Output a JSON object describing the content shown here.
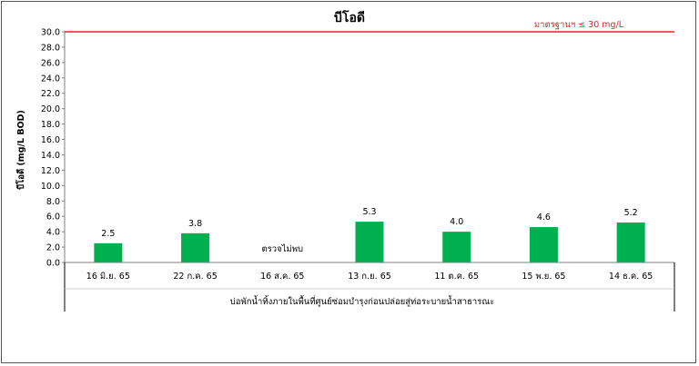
{
  "chart_data": {
    "type": "bar",
    "title": "บีโอดี",
    "ylabel": "บีโอดี (mg/L BOD)",
    "xlabel": "บ่อพักน้ำทิ้งภายในพื้นที่ศูนย์ซ่อมบำรุงก่อนปล่อยสู่ท่อระบายน้ำสาธารณะ",
    "categories": [
      "16 มิ.ย. 65",
      "22 ก.ค. 65",
      "16 ส.ค. 65",
      "13 ก.ย. 65",
      "11 ต.ค. 65",
      "15 พ.ย. 65",
      "14 ธ.ค. 65"
    ],
    "values": [
      2.5,
      3.8,
      null,
      5.3,
      4.0,
      4.6,
      5.2
    ],
    "value_labels": [
      "2.5",
      "3.8",
      "ตรวจไม่พบ",
      "5.3",
      "4.0",
      "4.6",
      "5.2"
    ],
    "ylim": [
      0,
      30
    ],
    "yticks": [
      "0.0",
      "2.0",
      "4.0",
      "6.0",
      "8.0",
      "10.0",
      "12.0",
      "14.0",
      "16.0",
      "18.0",
      "20.0",
      "22.0",
      "24.0",
      "26.0",
      "28.0",
      "30.0"
    ],
    "bar_color": "#00b050",
    "grid": false,
    "legend": "none",
    "standard": {
      "value": 30,
      "label": "มาตรฐานฯ ≤ 30 mg/L",
      "color": "#e8202a"
    }
  }
}
